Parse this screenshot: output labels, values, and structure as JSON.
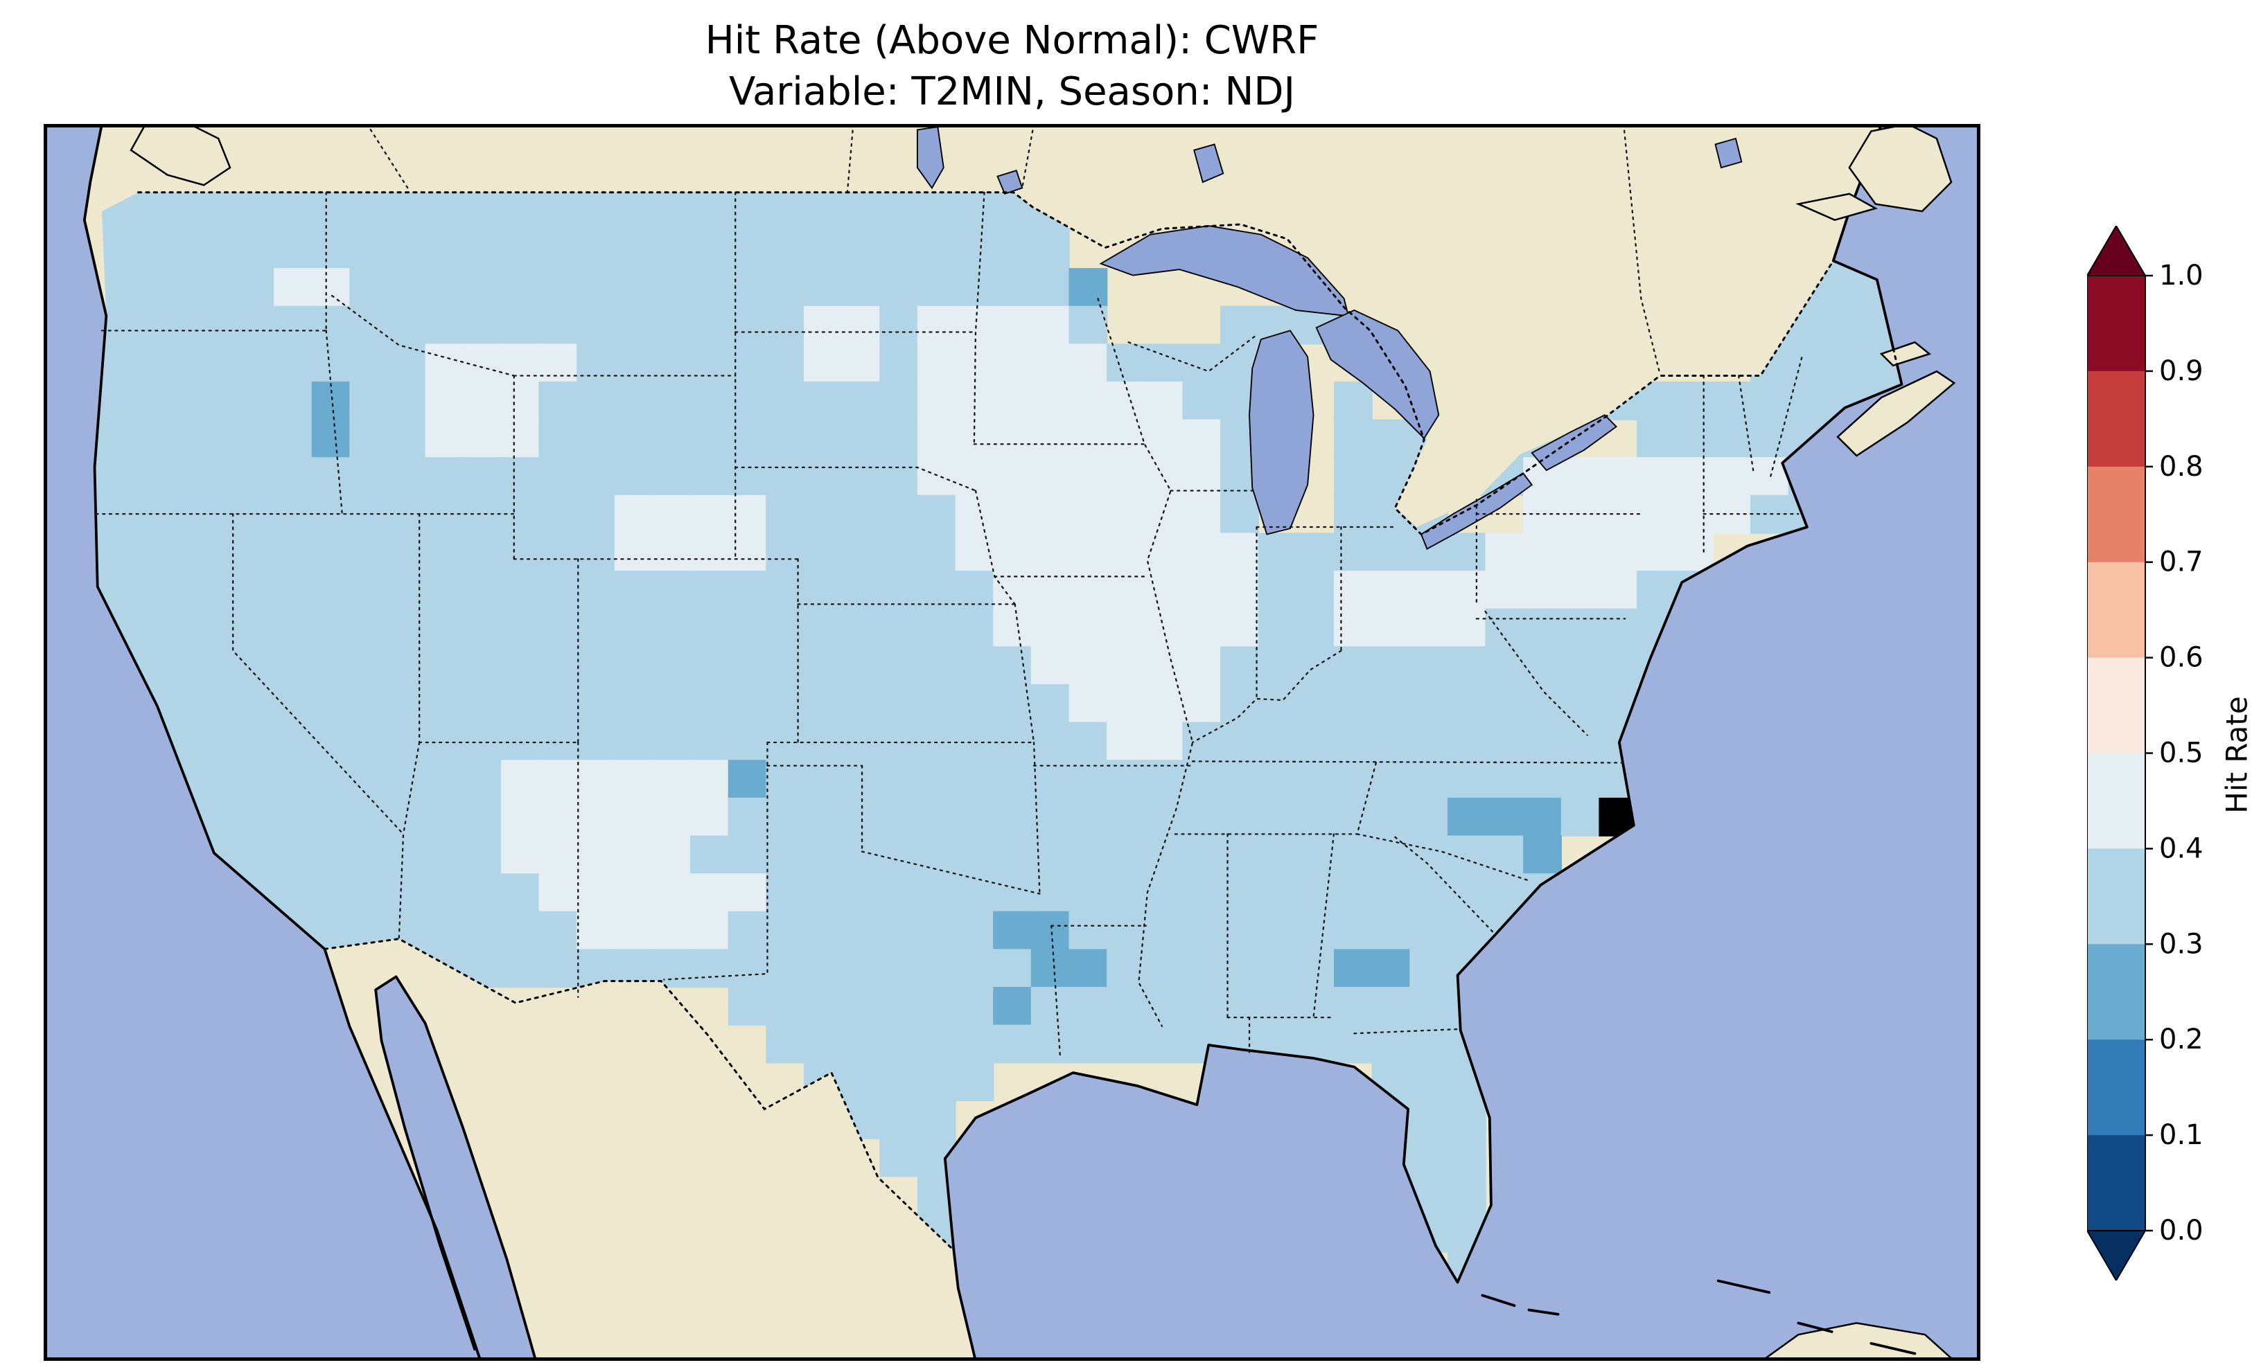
{
  "figure": {
    "title": "Hit Rate (Above Normal): CWRF",
    "subtitle": "Variable: T2MIN, Season: NDJ"
  },
  "map": {
    "ocean_color": "#9fb1dd",
    "land_color": "#eee9ce",
    "lake_color": "#8fa5d8"
  },
  "colorbar": {
    "label": "Hit Rate",
    "ticks": [
      "1.0",
      "0.9",
      "0.8",
      "0.7",
      "0.6",
      "0.5",
      "0.4",
      "0.3",
      "0.2",
      "0.1",
      "0.0"
    ],
    "extend": "both",
    "over_color": "#67001f",
    "under_color": "#053061",
    "bin_colors_top_to_bottom": [
      "#8c0c25",
      "#c43c3c",
      "#e58267",
      "#f8c0a4",
      "#fae9df",
      "#e4eef3",
      "#b1d5e7",
      "#6aacd0",
      "#327cb7",
      "#134b86"
    ]
  },
  "chart_data": {
    "type": "heatmap",
    "title": "Hit Rate (Above Normal): CWRF",
    "subtitle": "Variable: T2MIN, Season: NDJ",
    "colorbar_label": "Hit Rate",
    "region": "Contiguous United States",
    "value_range": [
      0.0,
      1.0
    ],
    "bin_edges": [
      0.0,
      0.1,
      0.2,
      0.3,
      0.4,
      0.5,
      0.6,
      0.7,
      0.8,
      0.9,
      1.0
    ],
    "legend_position": "right",
    "value_key": {
      ".": null,
      "2": 0.25,
      "3": 0.35,
      "4": 0.45
    },
    "code_colors": {
      "2": "#6aacd0",
      "3": "#b1d5e7",
      "4": "#e4eef3"
    },
    "grid_rows": [
      "33333333333333333333333333...................333",
      "33333333333333333333333333..................3333",
      "333334433333333333333333332.....333........33333",
      "333333333333333333344344443...33333........33333",
      "3333333334444333333443444443333.............3333",
      "3333332334443333333333444444433..3...33333333333",
      "3333332334443333333333444444443..333333..3333333",
      "3333333333333333333333444444443..333334444444333",
      "3333333333333344443333344444443..333..4444443333",
      "3333333333333344443333344444444333333444444.....",
      "3333333333333333333333334444444334444444433.....",
      "333333333333333333333333444444433444433333......",
      "333333333333333333333333344444333333333333......",
      "33333333333333333333333333444433333333333.......",
      "33333333333333333333333333344333333333333.......",
      "333333333334444442333333333333333333333333.......",
      "33333333333444444333333333333333333322231.......",
      "333333333334444433333333333333333333332.........",
      "333333333333444444333333333333333333333..........",
      "...33333333334444333333322333333333333333..........",
      ".....3333333333333333333322333333223333..........",
      ".................33333332333333333333...........",
      "..................3333333333333333333...........",
      "...................33333..........333...........",
      "....................333...........333...........",
      ".....................33...........333...........",
      "......................3...........333...........",
      "......................3............334..........",
      "....................................3..........."
    ]
  }
}
